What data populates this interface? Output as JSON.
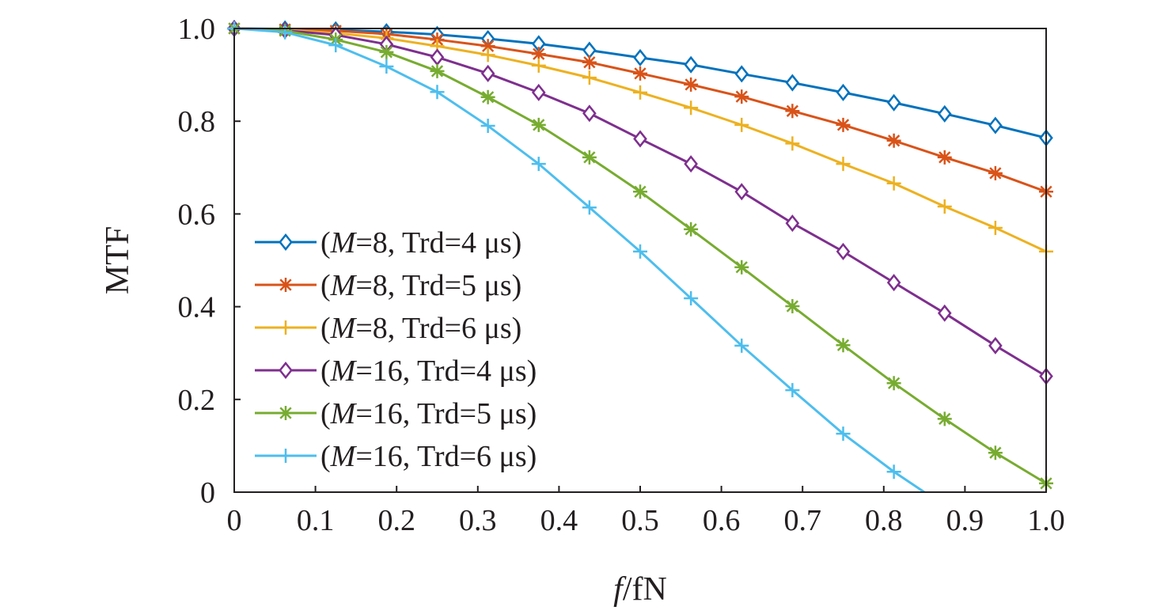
{
  "chart_data": {
    "type": "line",
    "title": "",
    "xlabel": "f/fN",
    "ylabel": "MTF",
    "xlim": [
      0,
      1.0
    ],
    "ylim": [
      0,
      1.0
    ],
    "xticks": [
      "0",
      "0.1",
      "0.2",
      "0.3",
      "0.4",
      "0.5",
      "0.6",
      "0.7",
      "0.8",
      "0.9",
      "1.0"
    ],
    "yticks": [
      "0",
      "0.2",
      "0.4",
      "0.6",
      "0.8",
      "1.0"
    ],
    "grid": false,
    "legend_position": "left-center",
    "x": [
      0,
      0.0625,
      0.125,
      0.1875,
      0.25,
      0.3125,
      0.375,
      0.4375,
      0.5,
      0.5625,
      0.625,
      0.6875,
      0.75,
      0.8125,
      0.875,
      0.9375,
      1.0
    ],
    "series": [
      {
        "name": "(M=8, Trd=4 μs)",
        "color": "#0072BD",
        "marker": "diamond",
        "values": [
          1,
          0.999,
          0.997,
          0.993,
          0.987,
          0.978,
          0.967,
          0.953,
          0.937,
          0.922,
          0.902,
          0.883,
          0.862,
          0.84,
          0.816,
          0.791,
          0.764
        ]
      },
      {
        "name": "(M=8, Trd=5 μs)",
        "color": "#D95319",
        "marker": "asterisk",
        "values": [
          1,
          0.998,
          0.995,
          0.988,
          0.976,
          0.962,
          0.945,
          0.927,
          0.903,
          0.879,
          0.853,
          0.822,
          0.792,
          0.758,
          0.722,
          0.688,
          0.648
        ]
      },
      {
        "name": "(M=8, Trd=6 μs)",
        "color": "#EDB120",
        "marker": "plus",
        "values": [
          1,
          0.997,
          0.99,
          0.979,
          0.962,
          0.943,
          0.92,
          0.894,
          0.862,
          0.829,
          0.792,
          0.752,
          0.708,
          0.666,
          0.616,
          0.57,
          0.519
        ]
      },
      {
        "name": "(M=16, Trd=4 μs)",
        "color": "#7E2F8E",
        "marker": "diamond",
        "values": [
          1,
          0.996,
          0.986,
          0.966,
          0.938,
          0.903,
          0.862,
          0.817,
          0.762,
          0.708,
          0.648,
          0.58,
          0.519,
          0.452,
          0.386,
          0.316,
          0.25
        ]
      },
      {
        "name": "(M=16, Trd=5 μs)",
        "color": "#77AC30",
        "marker": "asterisk",
        "values": [
          1,
          0.995,
          0.976,
          0.949,
          0.908,
          0.852,
          0.792,
          0.722,
          0.648,
          0.567,
          0.485,
          0.401,
          0.317,
          0.235,
          0.158,
          0.085,
          0.019
        ]
      },
      {
        "name": "(M=16, Trd=6 μs)",
        "color": "#4DBEEE",
        "marker": "plus",
        "values": [
          1,
          0.992,
          0.964,
          0.918,
          0.863,
          0.79,
          0.708,
          0.614,
          0.519,
          0.418,
          0.316,
          0.22,
          0.126,
          0.044,
          null,
          null,
          null
        ],
        "line_end": [
          0.85,
          0
        ]
      }
    ]
  }
}
